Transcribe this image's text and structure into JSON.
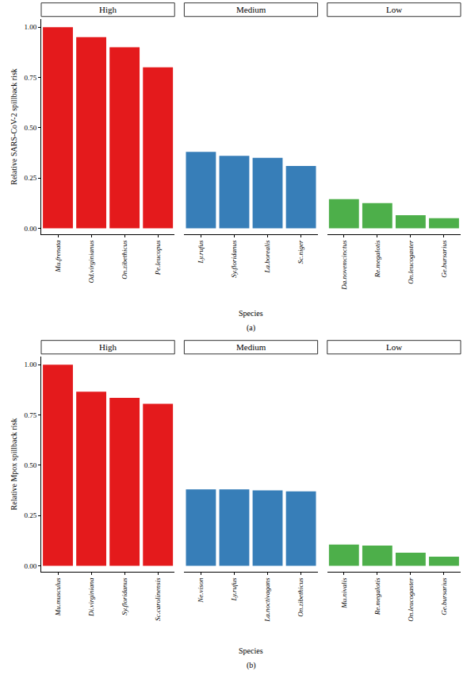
{
  "chart_data": [
    {
      "type": "bar",
      "y_label": "Relative SARS-CoV-2 spillback risk",
      "x_label": "Species",
      "caption": "(a)",
      "ylim": [
        -0.03,
        1.04
      ],
      "yticks": [
        {
          "value": 0,
          "label": "0.00"
        },
        {
          "value": 0.25,
          "label": "0.25"
        },
        {
          "value": 0.5,
          "label": "0.50"
        },
        {
          "value": 0.75,
          "label": "0.75"
        },
        {
          "value": 1,
          "label": "1.00"
        }
      ],
      "grid": false,
      "panels": [
        {
          "title": "High",
          "color": "#e41a1c",
          "categories": [
            "Mu.frenata",
            "Od.virginianus",
            "On.zibethicus",
            "Pe.leucopus"
          ],
          "values": [
            1.0,
            0.95,
            0.9,
            0.8
          ]
        },
        {
          "title": "Medium",
          "color": "#377eb8",
          "categories": [
            "Ly.rufus",
            "Sy.floridanus",
            "La.borealis",
            "Sc.niger"
          ],
          "values": [
            0.38,
            0.36,
            0.35,
            0.31
          ]
        },
        {
          "title": "Low",
          "color": "#4daf4a",
          "categories": [
            "Da.novemcinctus",
            "Re.megalotis",
            "On.leucogaster",
            "Ge.bursarius"
          ],
          "values": [
            0.145,
            0.125,
            0.065,
            0.05
          ]
        }
      ]
    },
    {
      "type": "bar",
      "y_label": "Relative Mpox spillback risk",
      "x_label": "Species",
      "caption": "(b)",
      "ylim": [
        -0.03,
        1.04
      ],
      "yticks": [
        {
          "value": 0,
          "label": "0.00"
        },
        {
          "value": 0.25,
          "label": "0.25"
        },
        {
          "value": 0.5,
          "label": "0.50"
        },
        {
          "value": 0.75,
          "label": "0.75"
        },
        {
          "value": 1,
          "label": "1.00"
        }
      ],
      "grid": false,
      "panels": [
        {
          "title": "High",
          "color": "#e41a1c",
          "categories": [
            "Mu.musculus",
            "Di.virginiana",
            "Sy.floridanus",
            "Sc.carolinensis"
          ],
          "values": [
            1.0,
            0.865,
            0.835,
            0.805
          ]
        },
        {
          "title": "Medium",
          "color": "#377eb8",
          "categories": [
            "Ne.vison",
            "Ly.rufus",
            "La.noctivagans",
            "On.zibethicus"
          ],
          "values": [
            0.38,
            0.38,
            0.375,
            0.37
          ]
        },
        {
          "title": "Low",
          "color": "#4daf4a",
          "categories": [
            "Mu.nivalis",
            "Re.megalotis",
            "On.leucogaster",
            "Ge.bursarius"
          ],
          "values": [
            0.105,
            0.1,
            0.065,
            0.045
          ]
        }
      ]
    }
  ]
}
